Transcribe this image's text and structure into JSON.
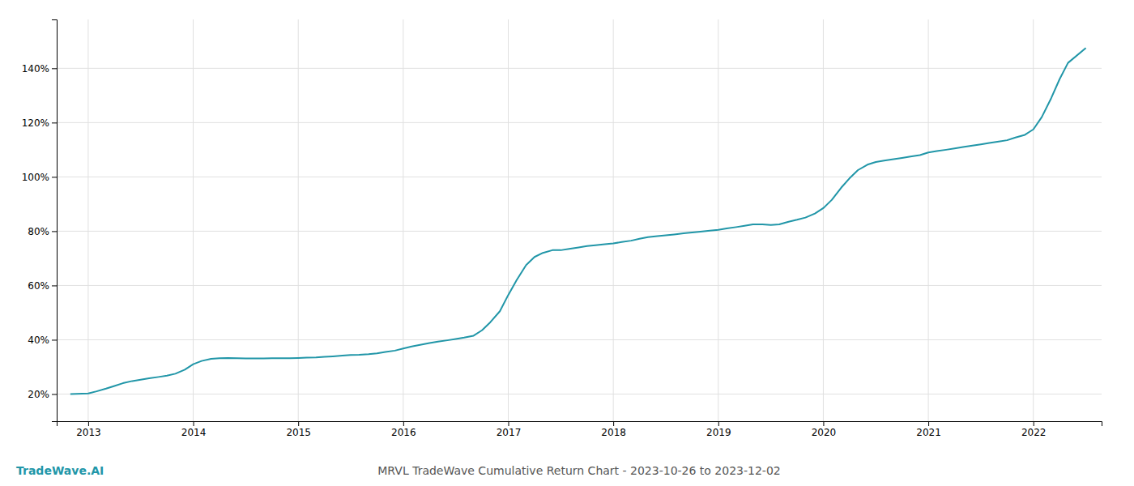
{
  "chart_data": {
    "type": "line",
    "title": "MRVL TradeWave Cumulative Return Chart - 2023-10-26 to 2023-12-02",
    "annotations": [
      "TradeWave.AI"
    ],
    "color": "#2196a8",
    "grid": true,
    "x": [
      2012.83,
      2013.0,
      2013.08,
      2013.17,
      2013.25,
      2013.33,
      2013.42,
      2013.5,
      2013.58,
      2013.67,
      2013.75,
      2013.83,
      2013.92,
      2014.0,
      2014.08,
      2014.17,
      2014.25,
      2014.33,
      2014.42,
      2014.5,
      2014.58,
      2014.67,
      2014.75,
      2014.83,
      2014.92,
      2015.0,
      2015.08,
      2015.17,
      2015.25,
      2015.33,
      2015.42,
      2015.5,
      2015.58,
      2015.67,
      2015.75,
      2015.83,
      2015.92,
      2016.0,
      2016.08,
      2016.17,
      2016.25,
      2016.33,
      2016.42,
      2016.5,
      2016.58,
      2016.67,
      2016.75,
      2016.83,
      2016.92,
      2017.0,
      2017.08,
      2017.17,
      2017.25,
      2017.33,
      2017.42,
      2017.5,
      2017.58,
      2017.67,
      2017.75,
      2017.83,
      2017.92,
      2018.0,
      2018.08,
      2018.17,
      2018.25,
      2018.33,
      2018.42,
      2018.5,
      2018.58,
      2018.67,
      2018.75,
      2018.83,
      2018.92,
      2019.0,
      2019.08,
      2019.17,
      2019.25,
      2019.33,
      2019.42,
      2019.5,
      2019.58,
      2019.67,
      2019.75,
      2019.83,
      2019.92,
      2020.0,
      2020.08,
      2020.17,
      2020.25,
      2020.33,
      2020.42,
      2020.5,
      2020.58,
      2020.67,
      2020.75,
      2020.83,
      2020.92,
      2021.0,
      2021.08,
      2021.17,
      2021.25,
      2021.33,
      2021.42,
      2021.5,
      2021.58,
      2021.67,
      2021.75,
      2021.83,
      2021.92,
      2022.0,
      2022.08,
      2022.17,
      2022.25,
      2022.33,
      2022.5
    ],
    "values": [
      20.0,
      20.2,
      21.0,
      22.0,
      23.0,
      24.0,
      24.8,
      25.3,
      25.8,
      26.3,
      26.8,
      27.5,
      29.0,
      31.0,
      32.2,
      33.0,
      33.2,
      33.3,
      33.2,
      33.1,
      33.1,
      33.1,
      33.2,
      33.2,
      33.2,
      33.3,
      33.4,
      33.5,
      33.7,
      33.9,
      34.2,
      34.4,
      34.5,
      34.7,
      35.0,
      35.5,
      36.0,
      36.8,
      37.5,
      38.2,
      38.8,
      39.3,
      39.8,
      40.3,
      40.8,
      41.5,
      43.5,
      46.5,
      50.5,
      56.5,
      62.0,
      67.5,
      70.5,
      72.0,
      73.0,
      73.0,
      73.5,
      74.0,
      74.5,
      74.8,
      75.2,
      75.5,
      76.0,
      76.5,
      77.2,
      77.8,
      78.2,
      78.5,
      78.8,
      79.2,
      79.5,
      79.8,
      80.2,
      80.5,
      81.0,
      81.5,
      82.0,
      82.5,
      82.5,
      82.3,
      82.5,
      83.5,
      84.2,
      85.0,
      86.5,
      88.5,
      91.5,
      96.0,
      99.5,
      102.5,
      104.5,
      105.5,
      106.0,
      106.5,
      107.0,
      107.5,
      108.0,
      109.0,
      109.5,
      110.0,
      110.5,
      111.0,
      111.5,
      112.0,
      112.5,
      113.0,
      113.5,
      114.5,
      115.5,
      117.5,
      122.0,
      129.0,
      136.0,
      142.0,
      147.5
    ],
    "xlim": [
      2012.7,
      2022.65
    ],
    "xticks": [
      2013,
      2014,
      2015,
      2016,
      2017,
      2018,
      2019,
      2020,
      2021,
      2022
    ],
    "ylim": [
      10,
      158
    ],
    "yticks": [
      {
        "value": 20,
        "label": "20%"
      },
      {
        "value": 40,
        "label": "40%"
      },
      {
        "value": 60,
        "label": "60%"
      },
      {
        "value": 80,
        "label": "80%"
      },
      {
        "value": 100,
        "label": "100%"
      },
      {
        "value": 120,
        "label": "120%"
      },
      {
        "value": 140,
        "label": "140%"
      }
    ]
  }
}
